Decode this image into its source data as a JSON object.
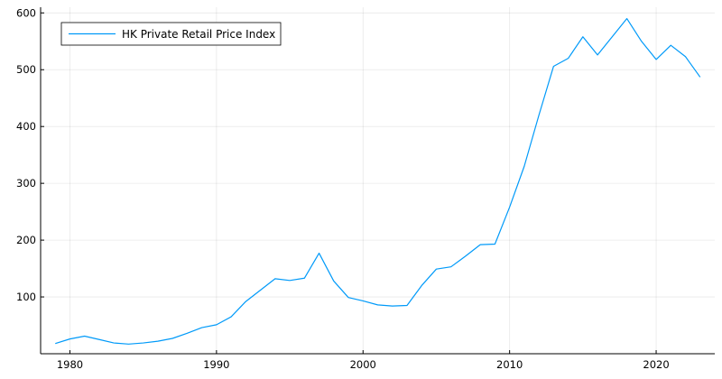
{
  "chart_data": {
    "type": "line",
    "title": "",
    "xlabel": "",
    "ylabel": "",
    "xlim": [
      1978,
      2024
    ],
    "ylim": [
      0,
      610
    ],
    "xticks": [
      1980,
      1990,
      2000,
      2010,
      2020
    ],
    "yticks": [
      100,
      200,
      300,
      400,
      500,
      600
    ],
    "grid": true,
    "legend_position": "top-left",
    "series": [
      {
        "name": "HK Private Retail Price Index",
        "color": "#009af9",
        "x": [
          1979,
          1980,
          1981,
          1982,
          1983,
          1984,
          1985,
          1986,
          1987,
          1988,
          1989,
          1990,
          1991,
          1992,
          1993,
          1994,
          1995,
          1996,
          1997,
          1998,
          1999,
          2000,
          2001,
          2002,
          2003,
          2004,
          2005,
          2006,
          2007,
          2008,
          2009,
          2010,
          2011,
          2012,
          2013,
          2014,
          2015,
          2016,
          2017,
          2018,
          2019,
          2020,
          2021,
          2022,
          2023
        ],
        "values": [
          18,
          26,
          31,
          25,
          19,
          17,
          19,
          22,
          27,
          36,
          46,
          51,
          65,
          92,
          112,
          132,
          129,
          133,
          177,
          128,
          99,
          93,
          86,
          84,
          85,
          120,
          149,
          153,
          172,
          192,
          193,
          258,
          330,
          420,
          506,
          520,
          558,
          526,
          558,
          590,
          550,
          518,
          543,
          523,
          487
        ]
      }
    ]
  }
}
